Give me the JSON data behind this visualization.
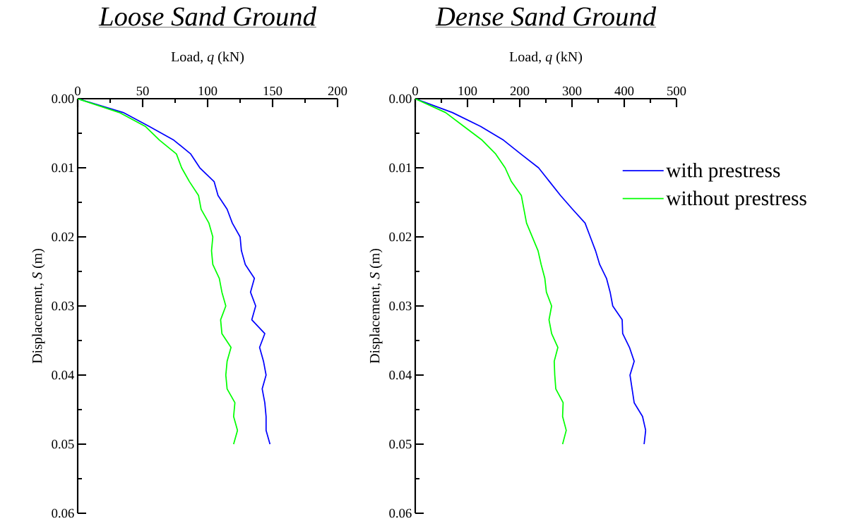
{
  "chart_data": [
    {
      "type": "line",
      "title": "Loose Sand Ground",
      "xlabel": "Load, *q* (kN)",
      "ylabel": "Displacement, *S* (m)",
      "xlim": [
        0,
        200
      ],
      "xticks": [
        0,
        {
          "value": 25,
          "label": null
        },
        50,
        {
          "value": 75,
          "label": null
        },
        100,
        {
          "value": 125,
          "label": null
        },
        150,
        {
          "value": 175,
          "label": null
        },
        200
      ],
      "ylim": [
        0.06,
        0
      ],
      "yticks": [
        {
          "value": 0,
          "label": "0.00"
        },
        {
          "value": 0.005,
          "label": null
        },
        {
          "value": 0.01,
          "label": "0.01"
        },
        {
          "value": 0.015,
          "label": null
        },
        {
          "value": 0.02,
          "label": "0.02"
        },
        {
          "value": 0.025,
          "label": null
        },
        {
          "value": 0.03,
          "label": "0.03"
        },
        {
          "value": 0.035,
          "label": null
        },
        {
          "value": 0.04,
          "label": "0.04"
        },
        {
          "value": 0.045,
          "label": null
        },
        {
          "value": 0.05,
          "label": "0.05"
        },
        {
          "value": 0.055,
          "label": null
        },
        {
          "value": 0.06,
          "label": "0.06"
        }
      ],
      "series": [
        {
          "color": "#0000ff",
          "x": [
            0,
            35,
            55,
            74,
            87,
            94,
            105,
            108,
            115,
            119,
            125,
            126,
            129,
            136,
            133,
            137,
            134,
            144,
            140,
            143,
            145,
            142,
            144,
            145,
            145,
            148
          ],
          "values": [
            0,
            0.002,
            0.004,
            0.006,
            0.008,
            0.01,
            0.012,
            0.014,
            0.016,
            0.018,
            0.02,
            0.022,
            0.024,
            0.026,
            0.028,
            0.03,
            0.032,
            0.034,
            0.036,
            0.038,
            0.04,
            0.042,
            0.044,
            0.046,
            0.048,
            0.05
          ]
        },
        {
          "color": "#00ff00",
          "x": [
            0,
            32,
            52,
            63,
            76,
            80,
            86,
            93,
            95,
            101,
            104,
            103,
            104,
            109,
            111,
            114,
            110,
            111,
            118,
            115,
            114,
            115,
            121,
            120,
            123,
            120
          ],
          "values": [
            0,
            0.002,
            0.004,
            0.006,
            0.008,
            0.01,
            0.012,
            0.014,
            0.016,
            0.018,
            0.02,
            0.022,
            0.024,
            0.026,
            0.028,
            0.03,
            0.032,
            0.034,
            0.036,
            0.038,
            0.04,
            0.042,
            0.044,
            0.046,
            0.048,
            0.05
          ]
        }
      ]
    },
    {
      "type": "line",
      "title": "Dense Sand Ground",
      "xlabel": "Load, *q* (kN)",
      "ylabel": "Displacement, *S* (m)",
      "xlim": [
        0,
        500
      ],
      "xticks": [
        0,
        {
          "value": 50,
          "label": null
        },
        100,
        {
          "value": 150,
          "label": null
        },
        200,
        {
          "value": 250,
          "label": null
        },
        300,
        {
          "value": 350,
          "label": null
        },
        400,
        {
          "value": 450,
          "label": null
        },
        500
      ],
      "ylim": [
        0.06,
        0
      ],
      "yticks": [
        {
          "value": 0,
          "label": "0.00"
        },
        {
          "value": 0.005,
          "label": null
        },
        {
          "value": 0.01,
          "label": "0.01"
        },
        {
          "value": 0.015,
          "label": null
        },
        {
          "value": 0.02,
          "label": "0.02"
        },
        {
          "value": 0.025,
          "label": null
        },
        {
          "value": 0.03,
          "label": "0.03"
        },
        {
          "value": 0.035,
          "label": null
        },
        {
          "value": 0.04,
          "label": "0.04"
        },
        {
          "value": 0.045,
          "label": null
        },
        {
          "value": 0.05,
          "label": "0.05"
        },
        {
          "value": 0.055,
          "label": null
        },
        {
          "value": 0.06,
          "label": "0.06"
        }
      ],
      "legend": "right",
      "series": [
        {
          "name": "with prestress",
          "color": "#0000ff",
          "x": [
            0,
            71,
            125,
            169,
            202,
            236,
            257,
            278,
            301,
            325,
            335,
            345,
            353,
            366,
            373,
            378,
            396,
            397,
            410,
            419,
            411,
            415,
            419,
            435,
            441,
            438
          ],
          "values": [
            0,
            0.002,
            0.004,
            0.006,
            0.008,
            0.01,
            0.012,
            0.014,
            0.016,
            0.018,
            0.02,
            0.022,
            0.024,
            0.026,
            0.028,
            0.03,
            0.032,
            0.034,
            0.036,
            0.038,
            0.04,
            0.042,
            0.044,
            0.046,
            0.048,
            0.05
          ]
        },
        {
          "name": "without prestress",
          "color": "#00ff00",
          "x": [
            0,
            58,
            93,
            128,
            154,
            172,
            184,
            203,
            208,
            213,
            224,
            235,
            241,
            248,
            251,
            261,
            256,
            261,
            273,
            266,
            267,
            269,
            283,
            282,
            289,
            282
          ],
          "values": [
            0,
            0.002,
            0.004,
            0.006,
            0.008,
            0.01,
            0.012,
            0.014,
            0.016,
            0.018,
            0.02,
            0.022,
            0.024,
            0.026,
            0.028,
            0.03,
            0.032,
            0.034,
            0.036,
            0.038,
            0.04,
            0.042,
            0.044,
            0.046,
            0.048,
            0.05
          ]
        }
      ]
    }
  ]
}
